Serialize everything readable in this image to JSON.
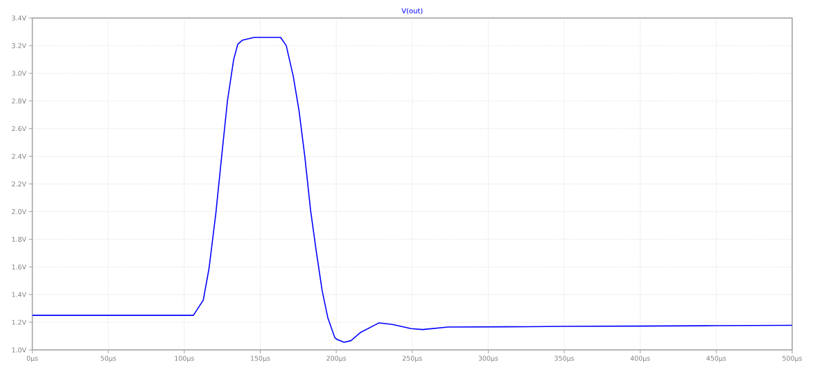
{
  "chart_data": {
    "type": "line",
    "title": "V(out)",
    "x": [
      0,
      50,
      100,
      106,
      112.5,
      116.3,
      120.8,
      124.6,
      128.4,
      132.5,
      135.2,
      138.3,
      145.9,
      156.5,
      163.4,
      167.1,
      171.7,
      175.5,
      179.3,
      183.1,
      186.9,
      190.7,
      194.5,
      199,
      200.6,
      205.2,
      209.7,
      215.8,
      228,
      237,
      249.2,
      256.8,
      273.5,
      311.5,
      350,
      400,
      450,
      500
    ],
    "series": [
      {
        "color": "#0000ff",
        "values": [
          1.25,
          1.25,
          1.25,
          1.25,
          1.36,
          1.59,
          1.99,
          2.4,
          2.8,
          3.1,
          3.21,
          3.24,
          3.26,
          3.26,
          3.26,
          3.2,
          2.98,
          2.73,
          2.4,
          2.01,
          1.71,
          1.43,
          1.23,
          1.09,
          1.075,
          1.055,
          1.067,
          1.125,
          1.195,
          1.184,
          1.154,
          1.147,
          1.165,
          1.167,
          1.17,
          1.172,
          1.175,
          1.178
        ]
      }
    ],
    "xlim": [
      0,
      500
    ],
    "ylim": [
      1.0,
      3.4
    ],
    "xticks": [
      {
        "value": 0,
        "label": "0µs"
      },
      {
        "value": 50,
        "label": "50µs"
      },
      {
        "value": 100,
        "label": "100µs"
      },
      {
        "value": 150,
        "label": "150µs"
      },
      {
        "value": 200,
        "label": "200µs"
      },
      {
        "value": 250,
        "label": "250µs"
      },
      {
        "value": 300,
        "label": "300µs"
      },
      {
        "value": 350,
        "label": "350µs"
      },
      {
        "value": 400,
        "label": "400µs"
      },
      {
        "value": 450,
        "label": "450µs"
      },
      {
        "value": 500,
        "label": "500µs"
      }
    ],
    "yticks": [
      {
        "value": 1.0,
        "label": "1.0V"
      },
      {
        "value": 1.2,
        "label": "1.2V"
      },
      {
        "value": 1.4,
        "label": "1.4V"
      },
      {
        "value": 1.6,
        "label": "1.6V"
      },
      {
        "value": 1.8,
        "label": "1.8V"
      },
      {
        "value": 2.0,
        "label": "2.0V"
      },
      {
        "value": 2.2,
        "label": "2.2V"
      },
      {
        "value": 2.4,
        "label": "2.4V"
      },
      {
        "value": 2.6,
        "label": "2.6V"
      },
      {
        "value": 2.8,
        "label": "2.8V"
      },
      {
        "value": 3.0,
        "label": "3.0V"
      },
      {
        "value": 3.2,
        "label": "3.2V"
      },
      {
        "value": 3.4,
        "label": "3.4V"
      }
    ],
    "grid": true,
    "marker": "none",
    "line_style": "solid"
  }
}
